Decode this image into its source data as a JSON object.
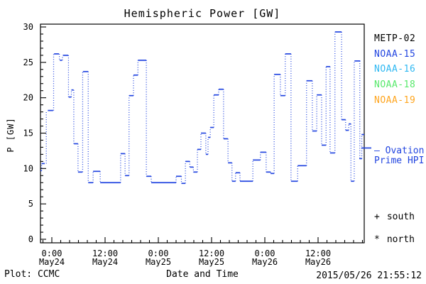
{
  "chart_data": {
    "type": "line",
    "subtype": "dotted-step-observations",
    "title": "Hemispheric Power [GW]",
    "xlabel": "Date and Time",
    "ylabel": "P [GW]",
    "ylim": [
      0,
      30
    ],
    "y_major_ticks": [
      0,
      5,
      10,
      15,
      20,
      25,
      30
    ],
    "y_minor_step": 1,
    "x_range_hours": [
      -2.56,
      70.4
    ],
    "x_minor_step_hours": 2,
    "x_ticks": [
      {
        "hour": 0,
        "time": "0:00",
        "date": "May24"
      },
      {
        "hour": 12,
        "time": "12:00",
        "date": "May24"
      },
      {
        "hour": 24,
        "time": "0:00",
        "date": "May25"
      },
      {
        "hour": 36,
        "time": "12:00",
        "date": "May25"
      },
      {
        "hour": 48,
        "time": "0:00",
        "date": "May26"
      },
      {
        "hour": 60,
        "time": "12:00",
        "date": "May26"
      }
    ],
    "grid": false,
    "legend_position": "right-outside",
    "series": [
      {
        "name": "NOAA-15",
        "color": "#2245e0",
        "units": "GW",
        "points_format": [
          "t_start_hours_from_May24_0000",
          "t_end_hours",
          "P_GW"
        ],
        "points": [
          [
            -2.6,
            -2.3,
            9.7
          ],
          [
            -2.3,
            -1.6,
            10.7
          ],
          [
            -0.9,
            0.3,
            18.2
          ],
          [
            0.5,
            1.6,
            26.2
          ],
          [
            1.8,
            2.3,
            25.3
          ],
          [
            2.5,
            3.7,
            26.0
          ],
          [
            3.8,
            4.4,
            20.1
          ],
          [
            4.4,
            4.9,
            21.1
          ],
          [
            5.0,
            5.9,
            13.5
          ],
          [
            5.9,
            6.9,
            9.5
          ],
          [
            7.0,
            8.2,
            23.7
          ],
          [
            8.2,
            9.3,
            8.0
          ],
          [
            9.3,
            10.9,
            9.6
          ],
          [
            10.9,
            15.5,
            8.0
          ],
          [
            15.5,
            16.5,
            12.1
          ],
          [
            16.5,
            17.4,
            9.0
          ],
          [
            17.4,
            18.4,
            20.3
          ],
          [
            18.4,
            19.4,
            23.2
          ],
          [
            19.4,
            21.3,
            25.3
          ],
          [
            21.3,
            22.4,
            8.9
          ],
          [
            22.4,
            28.0,
            8.0
          ],
          [
            28.0,
            29.2,
            8.9
          ],
          [
            29.2,
            30.1,
            7.9
          ],
          [
            30.1,
            31.1,
            11.0
          ],
          [
            31.1,
            31.9,
            10.2
          ],
          [
            31.9,
            32.8,
            9.5
          ],
          [
            32.8,
            33.6,
            12.7
          ],
          [
            33.6,
            34.7,
            15.0
          ],
          [
            34.7,
            35.2,
            12.0
          ],
          [
            35.2,
            35.7,
            14.4
          ],
          [
            35.7,
            36.5,
            15.8
          ],
          [
            36.5,
            37.6,
            20.4
          ],
          [
            37.6,
            38.7,
            21.2
          ],
          [
            38.7,
            39.7,
            14.2
          ],
          [
            39.7,
            40.6,
            10.8
          ],
          [
            40.6,
            41.4,
            8.2
          ],
          [
            41.4,
            42.4,
            9.4
          ],
          [
            42.4,
            45.3,
            8.2
          ],
          [
            45.3,
            47.0,
            11.2
          ],
          [
            47.0,
            48.3,
            12.3
          ],
          [
            48.3,
            49.3,
            9.5
          ],
          [
            49.3,
            50.1,
            9.3
          ],
          [
            50.1,
            51.5,
            23.3
          ],
          [
            51.5,
            52.6,
            20.3
          ],
          [
            52.6,
            53.9,
            26.2
          ],
          [
            53.9,
            55.4,
            8.2
          ],
          [
            55.4,
            57.4,
            10.4
          ],
          [
            57.4,
            58.7,
            22.4
          ],
          [
            58.7,
            59.7,
            15.3
          ],
          [
            59.7,
            60.8,
            20.4
          ],
          [
            60.8,
            61.8,
            13.3
          ],
          [
            61.8,
            62.7,
            24.4
          ],
          [
            62.7,
            63.8,
            12.2
          ],
          [
            63.8,
            65.3,
            29.3
          ],
          [
            65.3,
            66.2,
            16.9
          ],
          [
            66.2,
            66.9,
            15.4
          ],
          [
            66.9,
            67.4,
            16.3
          ],
          [
            67.4,
            68.1,
            8.2
          ],
          [
            68.2,
            69.5,
            25.2
          ],
          [
            69.3,
            69.9,
            11.4
          ],
          [
            69.8,
            70.4,
            14.8
          ]
        ]
      }
    ],
    "legend": [
      {
        "label": "METP-02",
        "color": "#000000"
      },
      {
        "label": "NOAA-15",
        "color": "#2245e0"
      },
      {
        "label": "NOAA-16",
        "color": "#2fb8f2"
      },
      {
        "label": "NOAA-18",
        "color": "#57e96b"
      },
      {
        "label": "NOAA-19",
        "color": "#ffa51e"
      }
    ],
    "ovation": {
      "dash": "—",
      "line1": "Ovation",
      "line2": "Prime HPI",
      "marker_value_gw": 12.9,
      "color": "#2245e0"
    },
    "markers": {
      "south_symbol": "+",
      "south_label": "south",
      "north_symbol": "*",
      "north_label": "north"
    },
    "footer": {
      "credit": "Plot: CCMC",
      "timestamp": "2015/05/26 21:55:12"
    }
  }
}
